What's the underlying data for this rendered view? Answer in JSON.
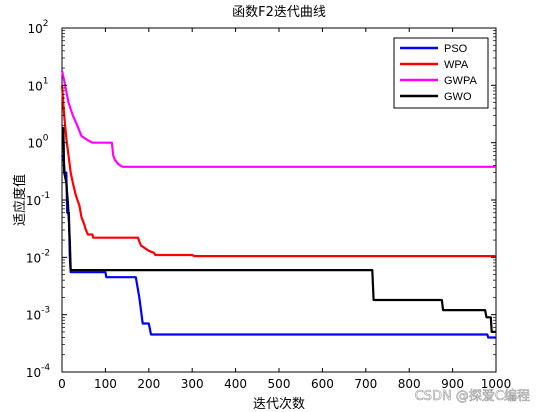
{
  "chart_data": {
    "type": "line",
    "title": "函数F2迭代曲线",
    "xlabel": "迭代次数",
    "ylabel": "适应度值",
    "xlim": [
      0,
      1000
    ],
    "ylim": [
      0.0001,
      100
    ],
    "yscale": "log",
    "grid": false,
    "legend_position": "top-right",
    "x_ticks": [
      "0",
      "100",
      "200",
      "300",
      "400",
      "500",
      "600",
      "700",
      "800",
      "900",
      "1000"
    ],
    "y_ticks": [
      {
        "base": "10",
        "exp": "-4"
      },
      {
        "base": "10",
        "exp": "-3"
      },
      {
        "base": "10",
        "exp": "-2"
      },
      {
        "base": "10",
        "exp": "-1"
      },
      {
        "base": "10",
        "exp": "0"
      },
      {
        "base": "10",
        "exp": "1"
      },
      {
        "base": "10",
        "exp": "2"
      }
    ],
    "series": [
      {
        "name": "PSO",
        "color": "#0000ff",
        "points": [
          [
            0,
            0.6
          ],
          [
            4,
            0.5
          ],
          [
            6,
            0.3
          ],
          [
            10,
            0.3
          ],
          [
            12,
            0.06
          ],
          [
            16,
            0.06
          ],
          [
            18,
            0.01
          ],
          [
            20,
            0.0055
          ],
          [
            100,
            0.0055
          ],
          [
            102,
            0.0045
          ],
          [
            170,
            0.0045
          ],
          [
            178,
            0.002
          ],
          [
            186,
            0.0007
          ],
          [
            200,
            0.0007
          ],
          [
            205,
            0.00045
          ],
          [
            980,
            0.00045
          ],
          [
            982,
            0.0004
          ],
          [
            1000,
            0.0004
          ]
        ]
      },
      {
        "name": "WPA",
        "color": "#ff0000",
        "points": [
          [
            0,
            10
          ],
          [
            5,
            3
          ],
          [
            10,
            1.2
          ],
          [
            15,
            0.6
          ],
          [
            20,
            0.3
          ],
          [
            25,
            0.2
          ],
          [
            32,
            0.12
          ],
          [
            40,
            0.08
          ],
          [
            45,
            0.05
          ],
          [
            50,
            0.04
          ],
          [
            55,
            0.03
          ],
          [
            60,
            0.025
          ],
          [
            70,
            0.025
          ],
          [
            72,
            0.022
          ],
          [
            175,
            0.022
          ],
          [
            182,
            0.016
          ],
          [
            200,
            0.013
          ],
          [
            212,
            0.012
          ],
          [
            215,
            0.011
          ],
          [
            300,
            0.011
          ],
          [
            305,
            0.0105
          ],
          [
            1000,
            0.0105
          ]
        ]
      },
      {
        "name": "GWPA",
        "color": "#ff00ff",
        "points": [
          [
            0,
            18
          ],
          [
            5,
            12
          ],
          [
            15,
            5
          ],
          [
            25,
            3
          ],
          [
            35,
            2
          ],
          [
            45,
            1.3
          ],
          [
            60,
            1.1
          ],
          [
            70,
            1
          ],
          [
            115,
            1
          ],
          [
            118,
            0.6
          ],
          [
            122,
            0.5
          ],
          [
            130,
            0.42
          ],
          [
            140,
            0.38
          ],
          [
            1000,
            0.38
          ]
        ]
      },
      {
        "name": "GWO",
        "color": "#000000",
        "points": [
          [
            0,
            1.8
          ],
          [
            3,
            1.8
          ],
          [
            5,
            0.3
          ],
          [
            10,
            0.2
          ],
          [
            14,
            0.08
          ],
          [
            18,
            0.02
          ],
          [
            20,
            0.006
          ],
          [
            715,
            0.006
          ],
          [
            718,
            0.0018
          ],
          [
            875,
            0.0018
          ],
          [
            878,
            0.0012
          ],
          [
            975,
            0.0012
          ],
          [
            978,
            0.0009
          ],
          [
            988,
            0.0009
          ],
          [
            990,
            0.0005
          ],
          [
            1000,
            0.0005
          ]
        ]
      }
    ]
  },
  "watermark": "CSDN @探爱C编程"
}
